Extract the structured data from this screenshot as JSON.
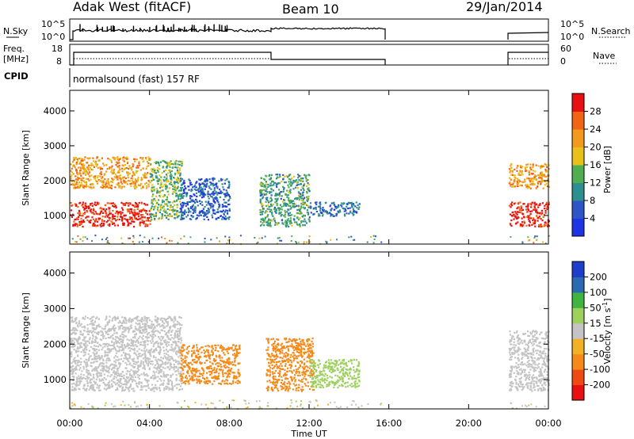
{
  "header": {
    "station": "Adak West (fitACF)",
    "beam": "Beam 10",
    "date": "29/Jan/2014"
  },
  "top_panels": {
    "nsky": {
      "label": "N.Sky",
      "ticks_left": [
        "10^5",
        "10^0"
      ],
      "right_label": "N.Search",
      "ticks_right": [
        "10^5",
        "10^0"
      ]
    },
    "freq": {
      "label_line1": "Freq.",
      "label_line2": "[MHz]",
      "ticks_left": [
        "18",
        "8"
      ],
      "right_label": "Nave",
      "ticks_right": [
        "60",
        "0"
      ]
    },
    "cpid": {
      "label": "CPID",
      "text": "normalsound (fast) 157 RF"
    }
  },
  "colors": {
    "power_scale": [
      "#1c34e6",
      "#2d55c8",
      "#2f8f8f",
      "#4fae4f",
      "#e8c018",
      "#f39a1c",
      "#f06514",
      "#e81010"
    ],
    "velocity_scale": [
      "#e81010",
      "#f04a14",
      "#f58a1a",
      "#f2b024",
      "#c4c4c4",
      "#9ed060",
      "#3fb43f",
      "#2a6ab0",
      "#1c3ec8"
    ]
  },
  "chart_data": [
    {
      "type": "heatmap",
      "name": "power",
      "xlabel": "",
      "ylabel": "Slant Range [km]",
      "x_ticks": [
        "00:00",
        "04:00",
        "08:00",
        "12:00",
        "16:00",
        "20:00",
        "00:00"
      ],
      "x_range_hours": [
        0,
        24
      ],
      "y_ticks": [
        1000,
        2000,
        3000,
        4000
      ],
      "y_range_km": [
        180,
        4590
      ],
      "colorbar": {
        "label": "Power [dB]",
        "ticks": [
          4,
          8,
          12,
          16,
          20,
          24,
          28
        ],
        "range": [
          0,
          32
        ]
      },
      "data_gap_hours": [
        15.8,
        22.0
      ],
      "echo_regions": [
        {
          "t": [
            0,
            4.0
          ],
          "r": [
            700,
            1400
          ],
          "value": 30
        },
        {
          "t": [
            0,
            4.0
          ],
          "r": [
            1800,
            2700
          ],
          "value": 22
        },
        {
          "t": [
            4.0,
            5.6
          ],
          "r": [
            900,
            2600
          ],
          "value": 14
        },
        {
          "t": [
            5.5,
            8.0
          ],
          "r": [
            900,
            2100
          ],
          "value": 6
        },
        {
          "t": [
            9.5,
            12.0
          ],
          "r": [
            700,
            2200
          ],
          "value": 12
        },
        {
          "t": [
            12.0,
            14.5
          ],
          "r": [
            1000,
            1400
          ],
          "value": 8
        },
        {
          "t": [
            22.0,
            24.0
          ],
          "r": [
            700,
            1400
          ],
          "value": 30
        },
        {
          "t": [
            22.0,
            24.0
          ],
          "r": [
            1800,
            2500
          ],
          "value": 22
        }
      ]
    },
    {
      "type": "heatmap",
      "name": "velocity",
      "xlabel": "Time UT",
      "ylabel": "Slant Range [km]",
      "x_ticks": [
        "00:00",
        "04:00",
        "08:00",
        "12:00",
        "16:00",
        "20:00",
        "00:00"
      ],
      "x_range_hours": [
        0,
        24
      ],
      "y_ticks": [
        1000,
        2000,
        3000,
        4000
      ],
      "y_range_km": [
        180,
        4590
      ],
      "colorbar": {
        "label": "Velocity [m s^-1]",
        "ticks": [
          200,
          100,
          50,
          15,
          -15,
          -50,
          -100,
          -200
        ]
      },
      "data_gap_hours": [
        15.8,
        22.0
      ],
      "echo_regions": [
        {
          "t": [
            0,
            5.6
          ],
          "r": [
            700,
            2800
          ],
          "value": 0
        },
        {
          "t": [
            5.5,
            8.5
          ],
          "r": [
            900,
            2000
          ],
          "value": -60
        },
        {
          "t": [
            9.8,
            12.2
          ],
          "r": [
            700,
            2200
          ],
          "value": -70
        },
        {
          "t": [
            12.0,
            14.5
          ],
          "r": [
            800,
            1600
          ],
          "value": 40
        },
        {
          "t": [
            22.0,
            24.0
          ],
          "r": [
            700,
            2400
          ],
          "value": 0
        }
      ]
    }
  ]
}
